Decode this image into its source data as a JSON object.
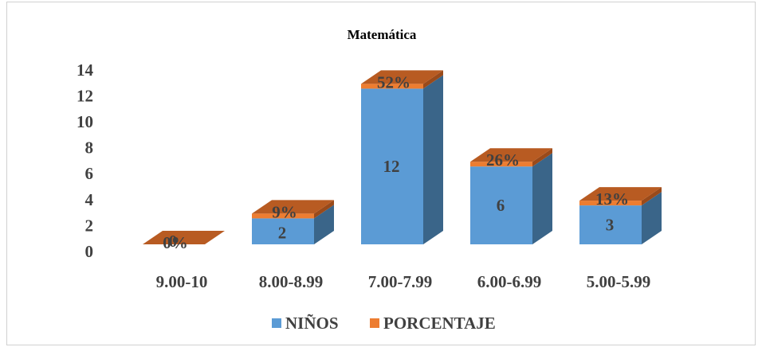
{
  "chart_data": {
    "type": "bar",
    "title": "Matemática",
    "xlabel": "",
    "ylabel": "",
    "categories": [
      "9.00-10",
      "8.00-8.99",
      "7.00-7.99",
      "6.00-6.99",
      "5.00-5.99"
    ],
    "series": [
      {
        "name": "NIÑOS",
        "values": [
          0,
          2,
          12,
          6,
          3
        ],
        "labels": [
          "0",
          "2",
          "12",
          "6",
          "3"
        ],
        "color": "#5B9BD5",
        "side_color": "#3A6589"
      },
      {
        "name": "PORCENTAJE",
        "values": [
          0,
          0.09,
          0.52,
          0.26,
          0.13
        ],
        "labels": [
          "0%",
          "9%",
          "52%",
          "26%",
          "13%"
        ],
        "color": "#ED7D31",
        "top_color": "#B85B22"
      }
    ],
    "stacked": true,
    "three_d": true,
    "yticks": [
      "0",
      "2",
      "4",
      "6",
      "8",
      "10",
      "12",
      "14"
    ],
    "ylim": [
      0,
      14
    ],
    "grid": false,
    "legend": "bottom"
  }
}
